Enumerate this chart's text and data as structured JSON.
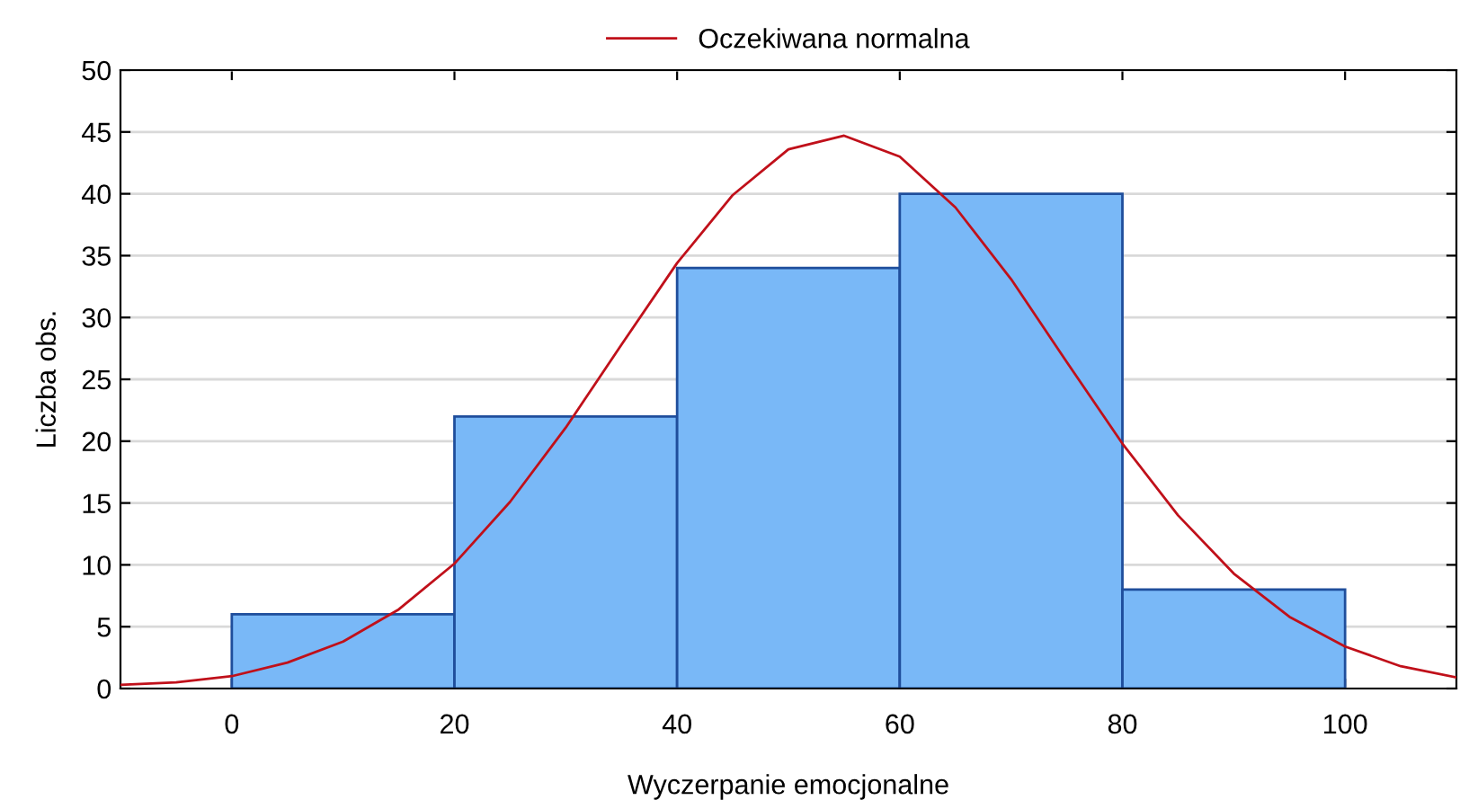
{
  "chart_data": {
    "type": "histogram",
    "xlabel": "Wyczerpanie emocjonalne",
    "ylabel": "Liczba obs.",
    "bins": [
      0,
      20,
      40,
      60,
      80,
      100
    ],
    "values": [
      6,
      22,
      34,
      40,
      8
    ],
    "color": "#79b8f7",
    "series": [
      {
        "type": "line",
        "name": "Oczekiwana normalna",
        "color": "#c0101a",
        "x": [
          -10,
          -5,
          0,
          5,
          10,
          15,
          20,
          25,
          30,
          35,
          40,
          45,
          50,
          55,
          60,
          65,
          70,
          75,
          80,
          85,
          90,
          95,
          100,
          105,
          110
        ],
        "values": [
          0.3,
          0.5,
          1.0,
          2.1,
          3.8,
          6.4,
          10.1,
          15.1,
          21.1,
          27.8,
          34.4,
          39.9,
          43.6,
          44.7,
          43.0,
          38.9,
          33.1,
          26.4,
          19.8,
          14.0,
          9.3,
          5.8,
          3.4,
          1.8,
          0.9
        ]
      }
    ],
    "xlim": [
      -10,
      110
    ],
    "xticks": [
      0,
      20,
      40,
      60,
      80,
      100
    ],
    "ylim": [
      0,
      50
    ],
    "yticks": [
      0,
      5,
      10,
      15,
      20,
      25,
      30,
      35,
      40,
      45,
      50
    ],
    "grid": "y",
    "legend": "top"
  }
}
